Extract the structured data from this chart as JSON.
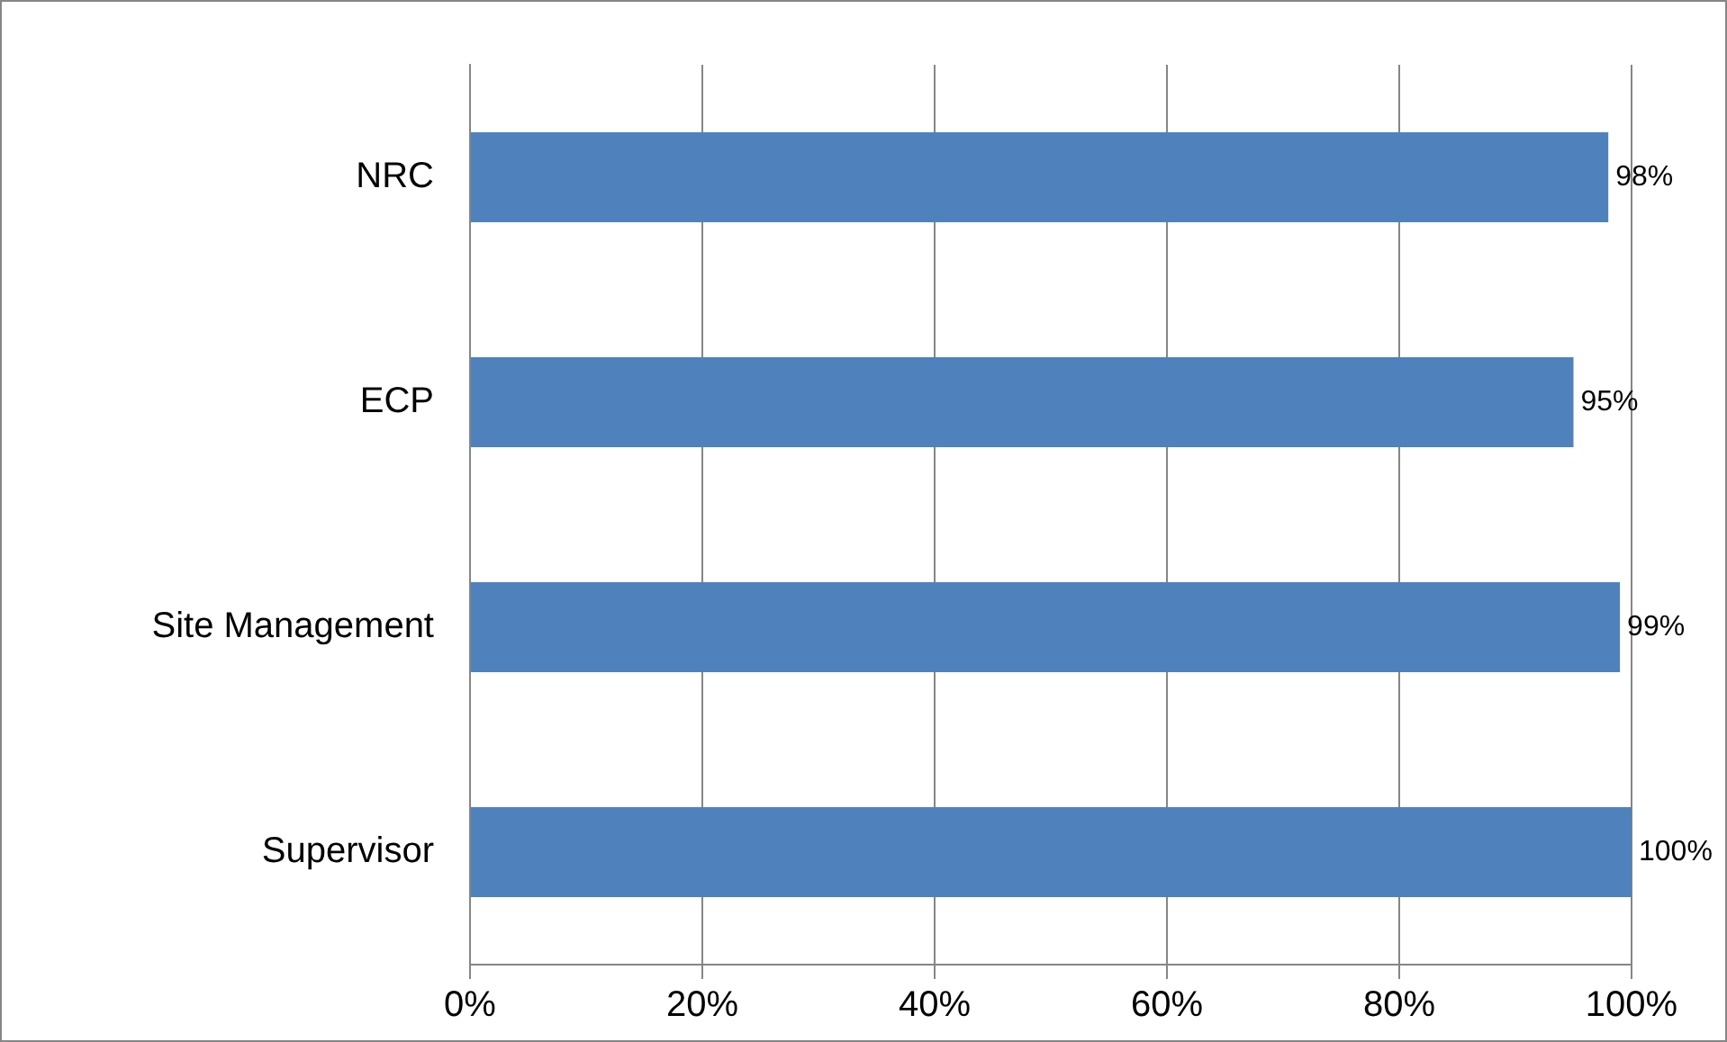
{
  "chart_data": {
    "type": "bar",
    "orientation": "horizontal",
    "categories": [
      "NRC",
      "ECP",
      "Site Management",
      "Supervisor"
    ],
    "values": [
      98,
      95,
      99,
      100
    ],
    "value_labels": [
      "98%",
      "95%",
      "99%",
      "100%"
    ],
    "color": "#4f81bd",
    "xlim": [
      0,
      100
    ],
    "xticks": [
      {
        "value": 0,
        "label": "0%"
      },
      {
        "value": 20,
        "label": "20%"
      },
      {
        "value": 40,
        "label": "40%"
      },
      {
        "value": 60,
        "label": "60%"
      },
      {
        "value": 80,
        "label": "80%"
      },
      {
        "value": 100,
        "label": "100%"
      }
    ],
    "grid": "x",
    "legend": false
  }
}
